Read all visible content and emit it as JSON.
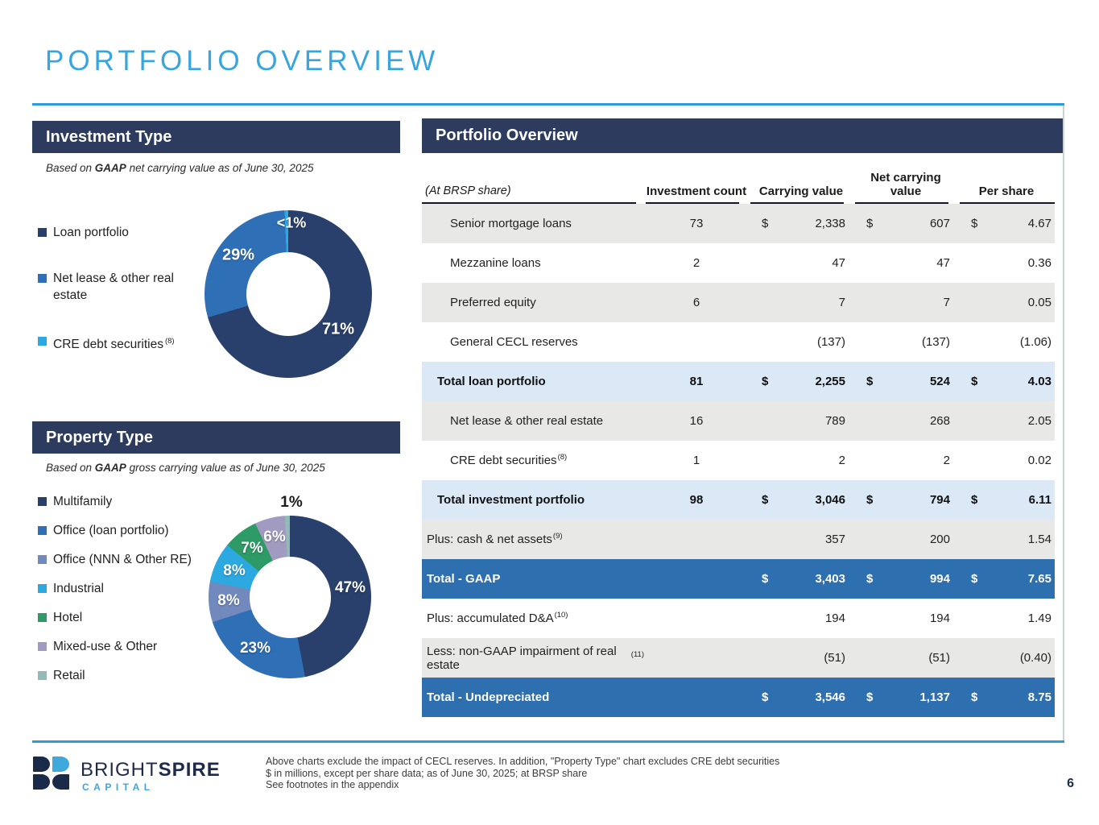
{
  "slide": {
    "title": "PORTFOLIO OVERVIEW",
    "page_number": "6"
  },
  "colors": {
    "accent_blue": "#2D9BD5",
    "navy_bar": "#2C3B5E",
    "grand_total_row": "#2E6FB0",
    "subtotal_row": "#DBE9F7",
    "gray_row": "#E8E8E6"
  },
  "investment_type": {
    "header": "Investment Type",
    "subtitle": {
      "pre": "Based on ",
      "bold": "GAAP",
      "post": " net carrying value as of June 30, 2025"
    }
  },
  "property_type": {
    "header": "Property Type",
    "subtitle": {
      "pre": "Based on ",
      "bold": "GAAP",
      "post": " gross carrying value as of June 30, 2025"
    }
  },
  "chart_data": [
    {
      "id": "investment-type-donut",
      "type": "pie",
      "title": "Investment Type",
      "subtitle": "Based on GAAP net carrying value as of June 30, 2025",
      "legend_position": "left",
      "slices": [
        {
          "name": "Loan portfolio",
          "label": "71%",
          "value": 71,
          "color": "#28406B"
        },
        {
          "name": "Net lease & other real estate",
          "label": "29%",
          "value": 29,
          "color": "#2F6FB5"
        },
        {
          "name": "CRE debt securities",
          "footnote": "(8)",
          "label": "<1%",
          "value": 0.7,
          "color": "#2BA9E0"
        }
      ]
    },
    {
      "id": "property-type-donut",
      "type": "pie",
      "title": "Property Type",
      "subtitle": "Based on GAAP gross carrying value as of June 30, 2025",
      "legend_position": "left",
      "slices": [
        {
          "name": "Multifamily",
          "label": "47%",
          "value": 47,
          "color": "#28406B"
        },
        {
          "name": "Office (loan portfolio)",
          "label": "23%",
          "value": 23,
          "color": "#2F6FB5"
        },
        {
          "name": "Office (NNN & Other RE)",
          "label": "8%",
          "value": 8,
          "color": "#7189BC"
        },
        {
          "name": "Industrial",
          "label": "8%",
          "value": 8,
          "color": "#2BA9E0"
        },
        {
          "name": "Hotel",
          "label": "7%",
          "value": 7,
          "color": "#2E9A66"
        },
        {
          "name": "Mixed-use & Other",
          "label": "6%",
          "value": 6,
          "color": "#A19BC1"
        },
        {
          "name": "Retail",
          "label": "1%",
          "value": 1,
          "color": "#92BBB8"
        }
      ]
    }
  ],
  "table": {
    "header": "Portfolio Overview",
    "corner_label": "(At BRSP share)",
    "currency_symbol": "$",
    "columns": [
      "Investment count",
      "Carrying value",
      "Net carrying value",
      "Per share"
    ],
    "rows": [
      {
        "label": "Senior mortgage loans",
        "indent": "sub",
        "variant": "gray",
        "dollar": true,
        "count": "73",
        "cv": "2,338",
        "ncv": "607",
        "ps": "4.67"
      },
      {
        "label": "Mezzanine loans",
        "indent": "sub",
        "variant": "white",
        "dollar": false,
        "count": "2",
        "cv": "47",
        "ncv": "47",
        "ps": "0.36"
      },
      {
        "label": "Preferred equity",
        "indent": "sub",
        "variant": "gray",
        "dollar": false,
        "count": "6",
        "cv": "7",
        "ncv": "7",
        "ps": "0.05"
      },
      {
        "label": "General CECL reserves",
        "indent": "sub",
        "variant": "white",
        "dollar": false,
        "count": "",
        "cv": "(137)",
        "ncv": "(137)",
        "ps": "(1.06)"
      },
      {
        "label": "Total loan portfolio",
        "indent": "total",
        "variant": "subtotal",
        "dollar": true,
        "count": "81",
        "cv": "2,255",
        "ncv": "524",
        "ps": "4.03"
      },
      {
        "label": "Net lease & other real estate",
        "indent": "sub",
        "variant": "gray",
        "dollar": false,
        "count": "16",
        "cv": "789",
        "ncv": "268",
        "ps": "2.05"
      },
      {
        "label": "CRE debt securities",
        "sup": "(8)",
        "indent": "sub",
        "variant": "white",
        "dollar": false,
        "count": "1",
        "cv": "2",
        "ncv": "2",
        "ps": "0.02"
      },
      {
        "label": "Total investment portfolio",
        "indent": "total",
        "variant": "subtotal",
        "dollar": true,
        "count": "98",
        "cv": "3,046",
        "ncv": "794",
        "ps": "6.11"
      },
      {
        "label": "Plus: cash & net assets",
        "sup": "(9)",
        "indent": "flush",
        "variant": "gray",
        "dollar": false,
        "count": "",
        "cv": "357",
        "ncv": "200",
        "ps": "1.54"
      },
      {
        "label": "Total - GAAP",
        "indent": "flush",
        "variant": "grand",
        "dollar": true,
        "count": "",
        "cv": "3,403",
        "ncv": "994",
        "ps": "7.65"
      },
      {
        "label": "Plus: accumulated D&A",
        "sup": "(10)",
        "indent": "flush",
        "variant": "white",
        "dollar": false,
        "count": "",
        "cv": "194",
        "ncv": "194",
        "ps": "1.49"
      },
      {
        "label": "Less: non-GAAP impairment of real estate",
        "sup": "(11)",
        "indent": "flush",
        "variant": "gray",
        "dollar": false,
        "count": "",
        "cv": "(51)",
        "ncv": "(51)",
        "ps": "(0.40)"
      },
      {
        "label": "Total - Undepreciated",
        "indent": "flush",
        "variant": "grand",
        "dollar": true,
        "count": "",
        "cv": "3,546",
        "ncv": "1,137",
        "ps": "8.75"
      }
    ]
  },
  "footer": {
    "logo_main": "BRIGHT",
    "logo_bold": "SPIRE",
    "logo_sub": "CAPITAL",
    "notes": [
      "Above charts exclude the impact of CECL reserves. In addition, \"Property Type\" chart excludes CRE debt securities",
      "$ in millions, except per share data; as of June 30, 2025; at BRSP share",
      "See footnotes in the appendix"
    ]
  }
}
